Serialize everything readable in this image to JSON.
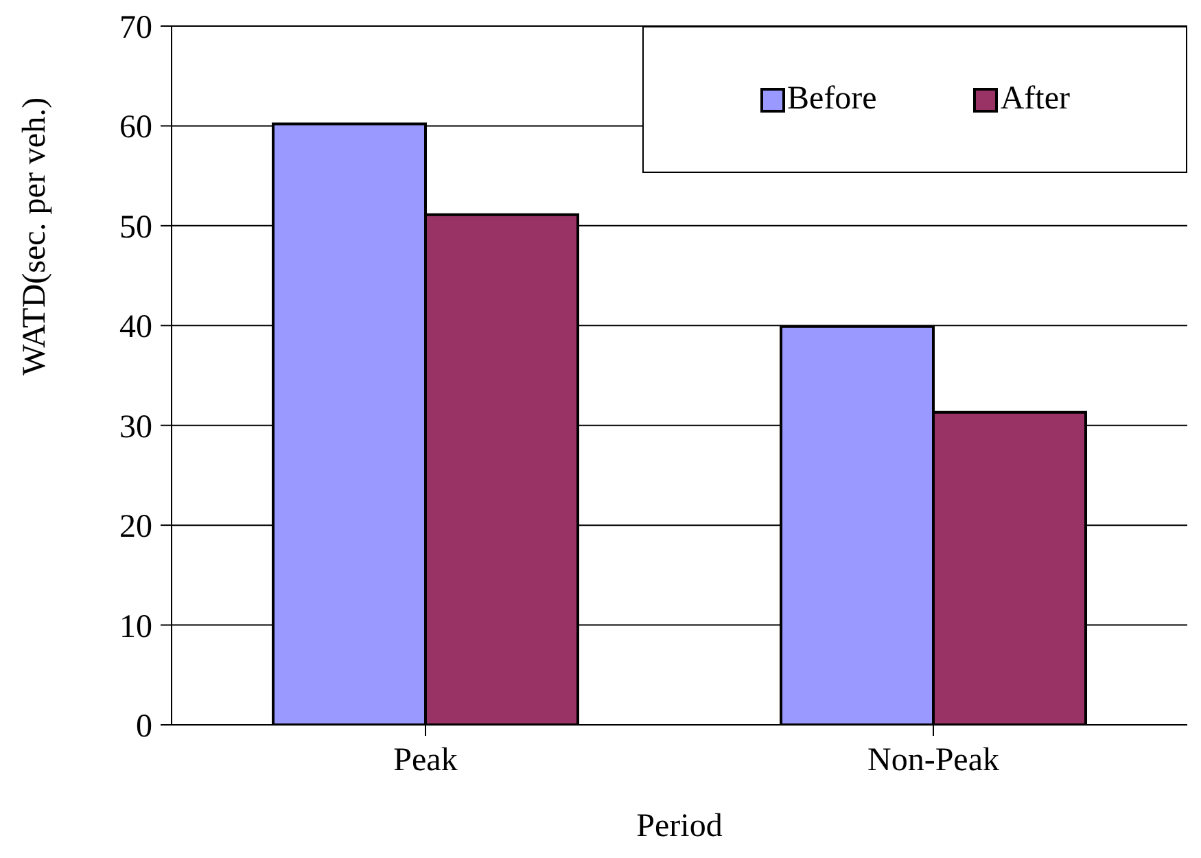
{
  "chart_data": {
    "type": "bar",
    "xlabel": "Period",
    "ylabel": "WATD(sec. per veh.)",
    "categories": [
      "Peak",
      "Non-Peak"
    ],
    "series": [
      {
        "name": "Before",
        "color": "#9999ff",
        "values": [
          60.2,
          39.9
        ]
      },
      {
        "name": "After",
        "color": "#993366",
        "values": [
          51.1,
          31.3
        ]
      }
    ],
    "ylim": [
      0,
      70
    ],
    "yticks": [
      0,
      10,
      20,
      30,
      40,
      50,
      60,
      70
    ],
    "grid": "y",
    "legend": "top right"
  }
}
